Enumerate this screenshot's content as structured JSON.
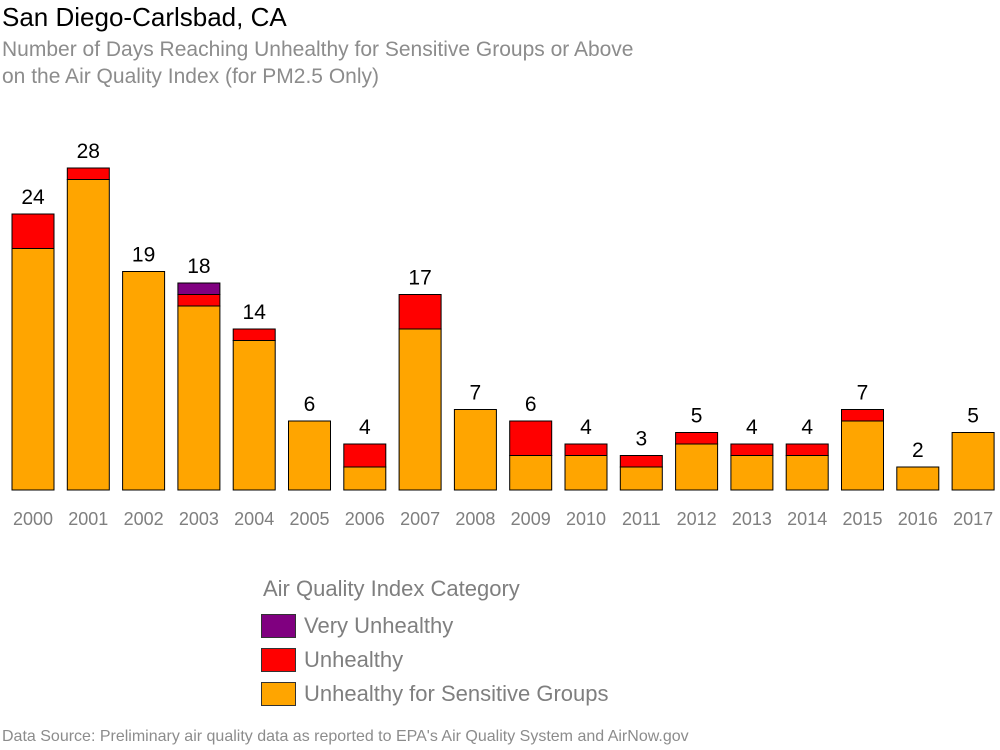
{
  "chart_data": {
    "type": "bar",
    "stacked": true,
    "title": "San Diego-Carlsbad, CA",
    "subtitle_lines": [
      "Number of Days Reaching Unhealthy for Sensitive Groups or Above",
      "on the Air Quality Index (for PM2.5 Only)"
    ],
    "categories": [
      "2000",
      "2001",
      "2002",
      "2003",
      "2004",
      "2005",
      "2006",
      "2007",
      "2008",
      "2009",
      "2010",
      "2011",
      "2012",
      "2013",
      "2014",
      "2015",
      "2016",
      "2017"
    ],
    "series": [
      {
        "name": "Unhealthy for Sensitive Groups",
        "color": "#FFA500",
        "values": [
          21,
          27,
          19,
          16,
          13,
          6,
          2,
          14,
          7,
          3,
          3,
          2,
          4,
          3,
          3,
          6,
          2,
          5
        ]
      },
      {
        "name": "Unhealthy",
        "color": "#FF0000",
        "values": [
          3,
          1,
          0,
          1,
          1,
          0,
          2,
          3,
          0,
          3,
          1,
          1,
          1,
          1,
          1,
          1,
          0,
          0
        ]
      },
      {
        "name": "Very Unhealthy",
        "color": "#800080",
        "values": [
          0,
          0,
          0,
          1,
          0,
          0,
          0,
          0,
          0,
          0,
          0,
          0,
          0,
          0,
          0,
          0,
          0,
          0
        ]
      }
    ],
    "totals": [
      24,
      28,
      19,
      18,
      14,
      6,
      4,
      17,
      7,
      6,
      4,
      3,
      5,
      4,
      4,
      7,
      2,
      5
    ],
    "ylim": [
      0,
      28
    ],
    "grid": false,
    "legend_placement": "bottom-center"
  },
  "legend": {
    "title": "Air Quality Index Category",
    "items": [
      {
        "label": "Very Unhealthy",
        "color": "#800080"
      },
      {
        "label": "Unhealthy",
        "color": "#FF0000"
      },
      {
        "label": "Unhealthy for Sensitive Groups",
        "color": "#FFA500"
      }
    ]
  },
  "source": "Data Source: Preliminary air quality data as reported to EPA's Air Quality System and AirNow.gov"
}
